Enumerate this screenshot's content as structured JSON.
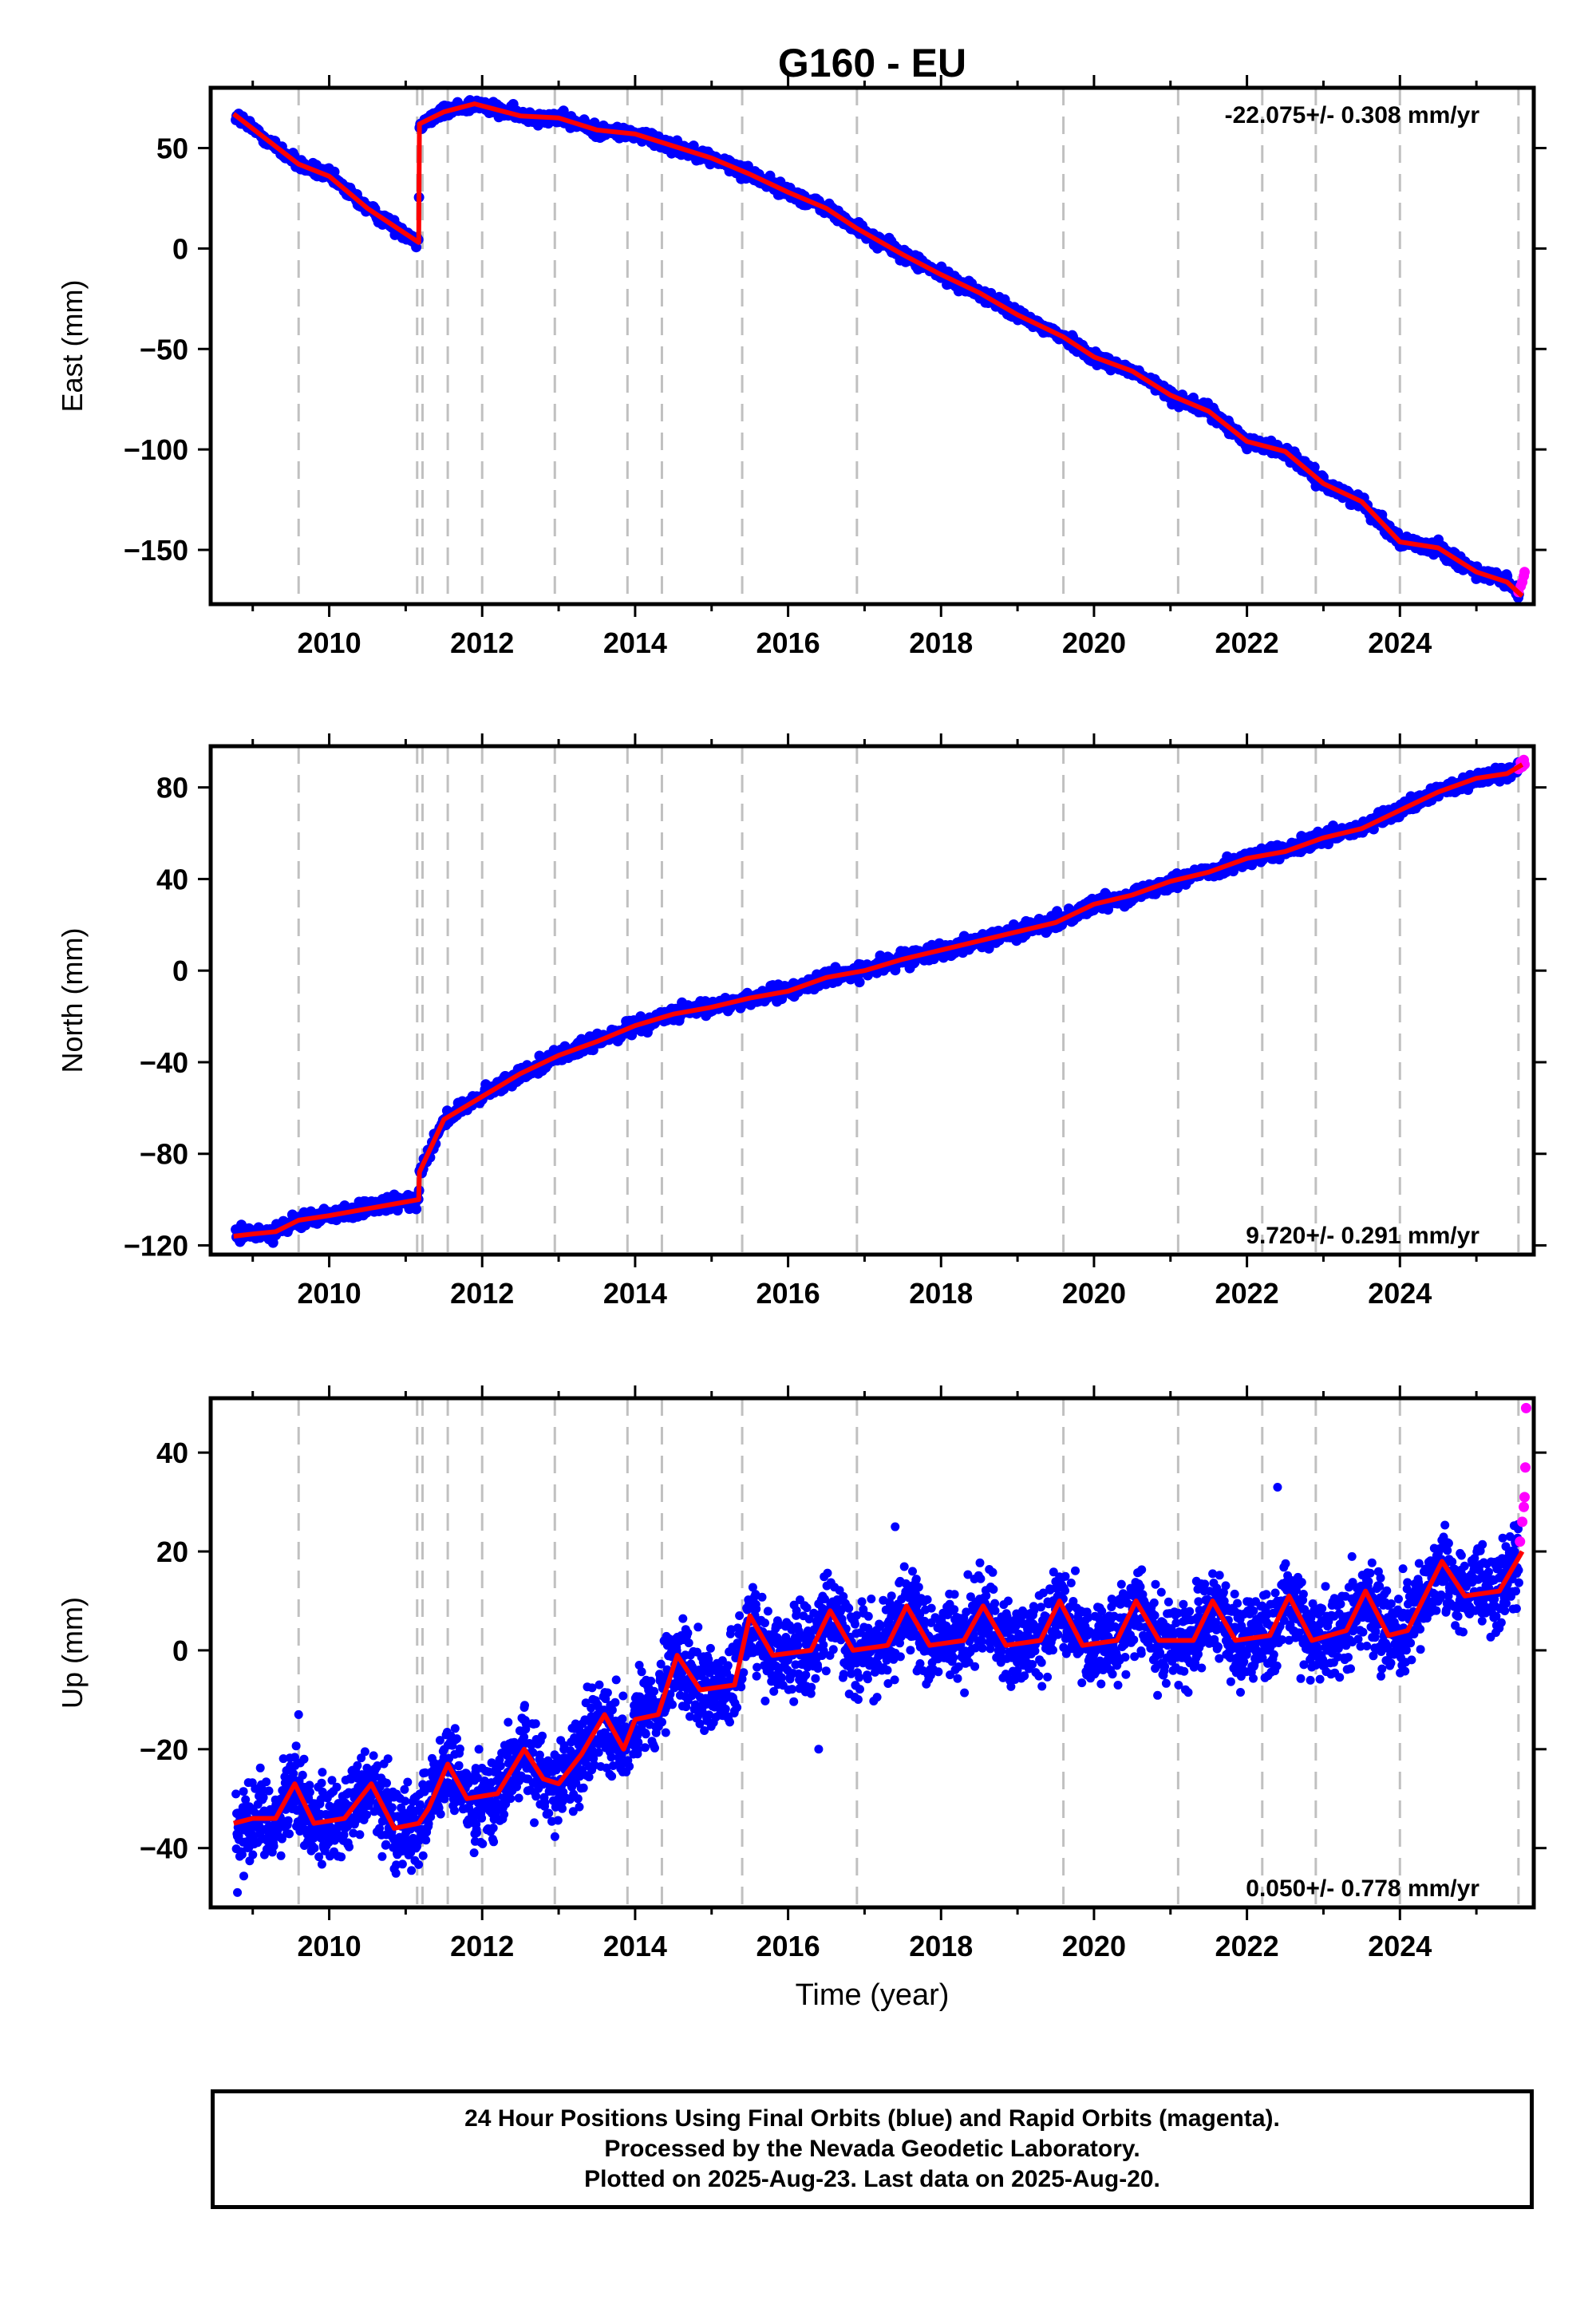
{
  "title": "G160 - EU",
  "xlabel": "Time (year)",
  "caption": {
    "line1": "24 Hour Positions Using Final Orbits (blue) and Rapid Orbits (magenta).",
    "line2": "Processed by the Nevada Geodetic Laboratory.",
    "line3": "Plotted on 2025-Aug-23. Last data on 2025-Aug-20."
  },
  "colors": {
    "final": "#0000ff",
    "rapid": "#ff00ff",
    "model": "#ff0000",
    "event_lines": "#c0c0c0"
  },
  "chart_data": [
    {
      "type": "scatter",
      "panel": "east",
      "ylabel": "East (mm)",
      "rate_text": "-22.075+/- 0.308 mm/yr",
      "rate_position": "top-right",
      "xlim": [
        2008.45,
        2025.75
      ],
      "ylim": [
        -177,
        80
      ],
      "xticks": [
        2010,
        2012,
        2014,
        2016,
        2018,
        2020,
        2022,
        2024
      ],
      "yticks": [
        -150,
        -100,
        -50,
        0,
        50
      ],
      "ytick_labels": [
        "−150",
        "−100",
        "−50",
        "0",
        "50"
      ],
      "model_x": [
        2008.75,
        2009.6,
        2010.0,
        2010.5,
        2011.17,
        2011.18,
        2011.5,
        2011.9,
        2012.5,
        2013.0,
        2013.5,
        2014.0,
        2014.5,
        2015.0,
        2015.5,
        2016.0,
        2016.5,
        2016.9,
        2017.5,
        2018.0,
        2018.5,
        2019.0,
        2019.6,
        2020.0,
        2020.5,
        2021.0,
        2021.5,
        2022.0,
        2022.5,
        2023.0,
        2023.5,
        2024.0,
        2024.5,
        2025.0,
        2025.4,
        2025.6
      ],
      "model_y": [
        67,
        42,
        36,
        20,
        3,
        62,
        68,
        72,
        66,
        65,
        59,
        57,
        51,
        45,
        37,
        28,
        20,
        10,
        -3,
        -13,
        -22,
        -33,
        -44,
        -54,
        -61,
        -73,
        -81,
        -96,
        -101,
        -117,
        -126,
        -146,
        -149,
        -161,
        -166,
        -173
      ],
      "rapid_x": [
        2025.55,
        2025.58,
        2025.6,
        2025.62,
        2025.63
      ],
      "rapid_y": [
        -171,
        -168,
        -166,
        -163,
        -161
      ],
      "vlines": [
        2009.6,
        2011.15,
        2011.22,
        2011.55,
        2012.0,
        2012.95,
        2013.9,
        2014.35,
        2015.4,
        2016.9,
        2019.6,
        2021.1,
        2022.2,
        2022.9,
        2024.0,
        2025.55
      ]
    },
    {
      "type": "scatter",
      "panel": "north",
      "ylabel": "North (mm)",
      "rate_text": "9.720+/- 0.291 mm/yr",
      "rate_position": "bottom-right",
      "xlim": [
        2008.45,
        2025.75
      ],
      "ylim": [
        -124,
        98
      ],
      "xticks": [
        2010,
        2012,
        2014,
        2016,
        2018,
        2020,
        2022,
        2024
      ],
      "yticks": [
        -120,
        -80,
        -40,
        0,
        40,
        80
      ],
      "ytick_labels": [
        "−120",
        "−80",
        "−40",
        "0",
        "40",
        "80"
      ],
      "model_x": [
        2008.75,
        2009.0,
        2009.3,
        2009.6,
        2010.0,
        2010.5,
        2011.0,
        2011.17,
        2011.18,
        2011.5,
        2012.0,
        2012.5,
        2013.0,
        2013.5,
        2014.0,
        2014.5,
        2015.0,
        2015.5,
        2016.0,
        2016.5,
        2017.0,
        2017.5,
        2018.0,
        2018.5,
        2019.0,
        2019.5,
        2020.0,
        2020.5,
        2021.0,
        2021.5,
        2022.0,
        2022.5,
        2023.0,
        2023.5,
        2024.0,
        2024.5,
        2025.0,
        2025.4,
        2025.6
      ],
      "model_y": [
        -116,
        -115,
        -114,
        -109,
        -107,
        -104,
        -101,
        -100,
        -88,
        -65,
        -55,
        -45,
        -37,
        -31,
        -24,
        -19,
        -16,
        -12,
        -9,
        -3,
        0,
        5,
        9,
        13,
        17,
        21,
        29,
        33,
        39,
        43,
        49,
        52,
        58,
        62,
        70,
        78,
        84,
        86,
        90
      ],
      "rapid_x": [
        2025.55,
        2025.58,
        2025.6,
        2025.62,
        2025.63
      ],
      "rapid_y": [
        88,
        91,
        89,
        92,
        90
      ],
      "vlines": [
        2009.6,
        2011.15,
        2011.22,
        2011.55,
        2012.0,
        2012.95,
        2013.9,
        2014.35,
        2015.4,
        2016.9,
        2019.6,
        2021.1,
        2022.2,
        2022.9,
        2024.0,
        2025.55
      ]
    },
    {
      "type": "scatter",
      "panel": "up",
      "ylabel": "Up (mm)",
      "rate_text": "0.050+/- 0.778 mm/yr",
      "rate_position": "bottom-right",
      "xlim": [
        2008.45,
        2025.75
      ],
      "ylim": [
        -52,
        51
      ],
      "xticks": [
        2010,
        2012,
        2014,
        2016,
        2018,
        2020,
        2022,
        2024
      ],
      "yticks": [
        -40,
        -20,
        0,
        20,
        40
      ],
      "ytick_labels": [
        "−40",
        "−20",
        "0",
        "20",
        "40"
      ],
      "model_x": [
        2008.75,
        2009.0,
        2009.3,
        2009.55,
        2009.8,
        2010.2,
        2010.55,
        2010.85,
        2011.17,
        2011.3,
        2011.55,
        2011.8,
        2012.2,
        2012.55,
        2012.8,
        2013.0,
        2013.3,
        2013.6,
        2013.85,
        2014.0,
        2014.3,
        2014.55,
        2014.85,
        2015.3,
        2015.5,
        2015.8,
        2016.3,
        2016.55,
        2016.85,
        2017.3,
        2017.55,
        2017.85,
        2018.3,
        2018.55,
        2018.85,
        2019.3,
        2019.55,
        2019.85,
        2020.3,
        2020.55,
        2020.85,
        2021.3,
        2021.55,
        2021.85,
        2022.3,
        2022.55,
        2022.85,
        2023.3,
        2023.55,
        2023.85,
        2024.1,
        2024.55,
        2024.85,
        2025.3,
        2025.6
      ],
      "model_y": [
        -35,
        -34,
        -34,
        -27,
        -35,
        -34,
        -27,
        -36,
        -35,
        -32,
        -23,
        -30,
        -29,
        -20,
        -26,
        -27,
        -21,
        -13,
        -20,
        -14,
        -13,
        -1,
        -8,
        -7,
        7,
        -1,
        0,
        8,
        0,
        1,
        9,
        1,
        2,
        9,
        1,
        2,
        10,
        1,
        2,
        10,
        2,
        2,
        10,
        2,
        3,
        11,
        2,
        4,
        12,
        3,
        4,
        18,
        11,
        12,
        20
      ],
      "rapid_x": [
        2025.57,
        2025.6,
        2025.62,
        2025.63,
        2025.64,
        2025.65
      ],
      "rapid_y": [
        22,
        26,
        29,
        31,
        37,
        49
      ],
      "vlines": [
        2009.6,
        2011.15,
        2011.22,
        2011.55,
        2012.0,
        2012.95,
        2013.9,
        2014.35,
        2015.4,
        2016.9,
        2019.6,
        2021.1,
        2022.2,
        2022.9,
        2024.0,
        2025.55
      ]
    }
  ]
}
